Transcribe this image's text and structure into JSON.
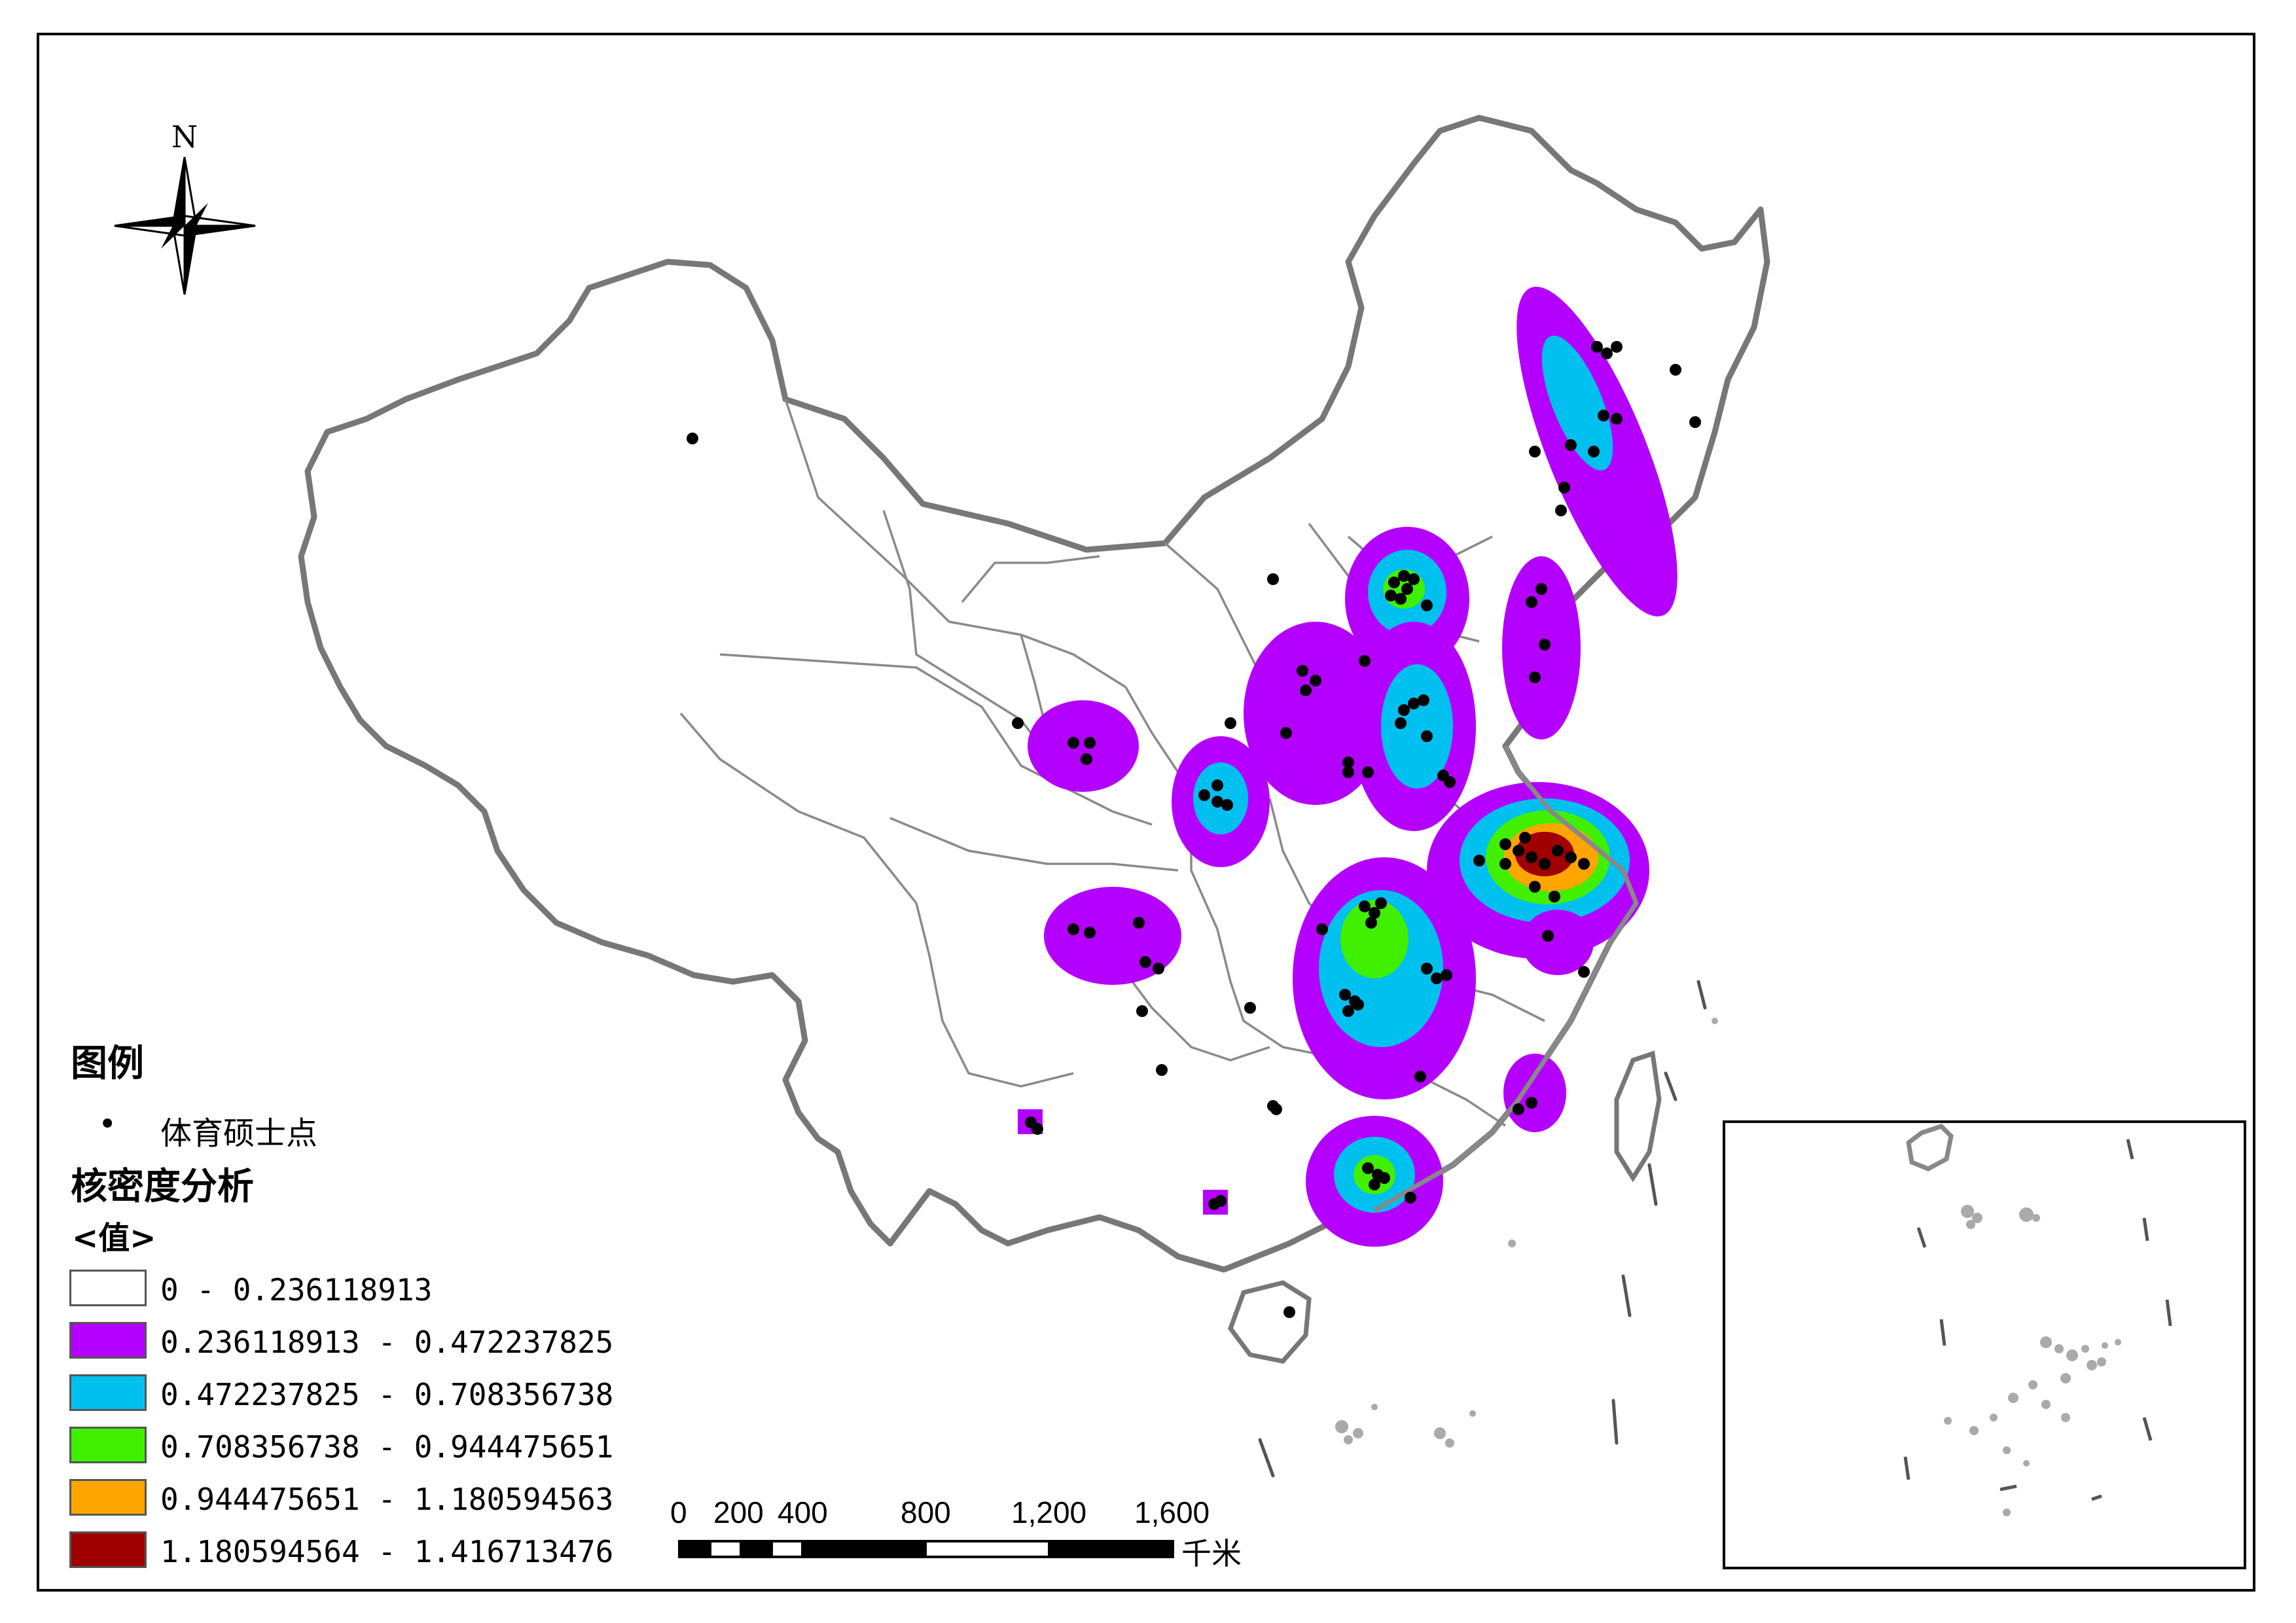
{
  "north_arrow": {
    "label": "N"
  },
  "legend": {
    "title": "图例",
    "point_symbol": "•",
    "point_label": "体育硕士点",
    "density_title": "核密度分析",
    "value_header": "<值>",
    "classes": [
      {
        "label": "0 - 0.236118913",
        "color": "#ffffff"
      },
      {
        "label": "0.236118913 - 0.472237825",
        "color": "#b400ff"
      },
      {
        "label": "0.472237825 - 0.708356738",
        "color": "#00c0f0"
      },
      {
        "label": "0.708356738 - 0.944475651",
        "color": "#40f000"
      },
      {
        "label": "0.944475651 - 1.180594563",
        "color": "#ffa500"
      },
      {
        "label": "1.180594564 - 1.416713476",
        "color": "#a00000"
      }
    ]
  },
  "scale_bar": {
    "ticks": [
      "0",
      "200",
      "400",
      "800",
      "1,200",
      "1,600"
    ],
    "unit": "千米"
  }
}
